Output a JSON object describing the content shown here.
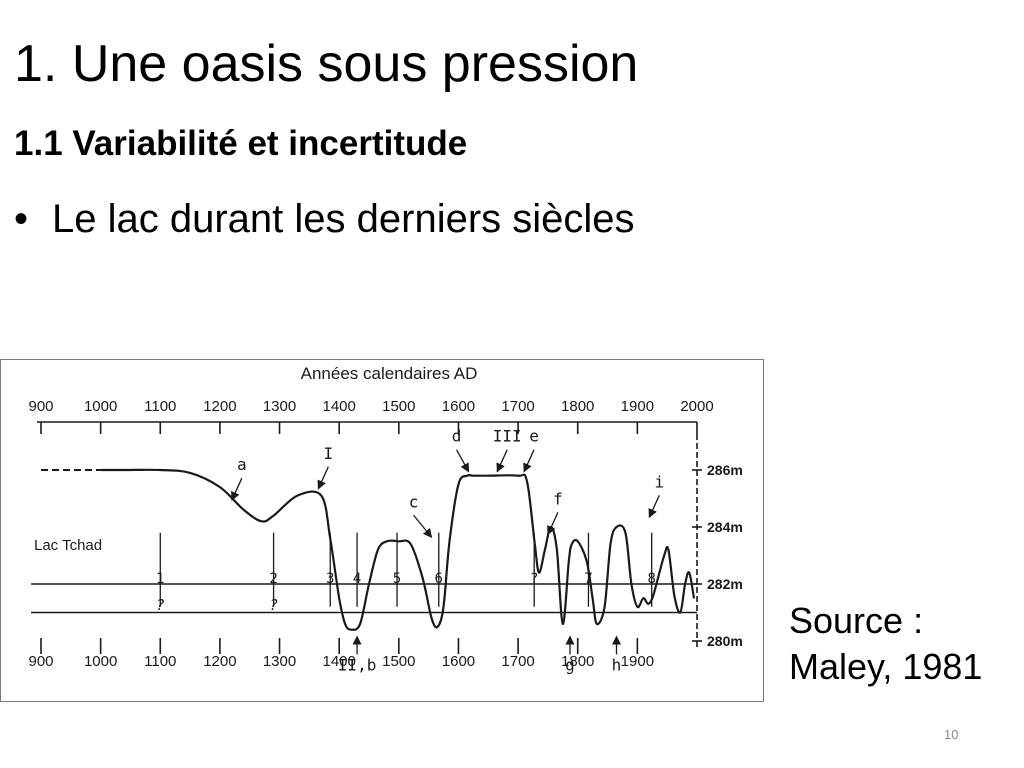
{
  "slide": {
    "title": "1. Une oasis sous pression",
    "subtitle": "1.1 Variabilité et incertitude",
    "bullet": "Le lac durant les derniers siècles",
    "source_line1": "Source :",
    "source_line2": "Maley, 1981",
    "page_number": "10"
  },
  "chart_data": {
    "type": "line",
    "title": "Années calendaires AD",
    "series_label": "Lac Tchad",
    "x_ticks": [
      "900",
      "1000",
      "1100",
      "1200",
      "1300",
      "1400",
      "1500",
      "1600",
      "1700",
      "1800",
      "1900",
      "2000"
    ],
    "x_ticks_bottom": [
      "900",
      "1000",
      "1100",
      "1200",
      "1300",
      "1400",
      "1500",
      "1600",
      "1700",
      "1800",
      "1900"
    ],
    "y_ticks": [
      "286m",
      "284m",
      "282m",
      "280m"
    ],
    "xlim": [
      900,
      2000
    ],
    "ylim": [
      280,
      286
    ],
    "series": [
      {
        "x": [
          1000,
          1040,
          1100,
          1150,
          1200,
          1240,
          1270,
          1290,
          1330,
          1370,
          1385,
          1400,
          1410,
          1420,
          1435,
          1450,
          1465,
          1480,
          1500,
          1520,
          1540,
          1555,
          1565,
          1575,
          1585,
          1600,
          1615,
          1625,
          1650,
          1700,
          1715,
          1728,
          1735,
          1745,
          1755,
          1765,
          1775,
          1785,
          1790,
          1800,
          1815,
          1825,
          1832,
          1845,
          1855,
          1865,
          1880,
          1890,
          1900,
          1910,
          1918,
          1925,
          1932,
          1945,
          1952,
          1962,
          1972,
          1980,
          1987,
          1995
        ],
        "y": [
          286,
          286,
          286,
          285.9,
          285.4,
          284.6,
          284.2,
          284.4,
          285.1,
          285.1,
          283.6,
          281.5,
          280.6,
          280.4,
          280.6,
          282,
          283.2,
          283.5,
          283.5,
          283.4,
          282.2,
          280.8,
          280.5,
          281.2,
          283.5,
          285.5,
          285.8,
          285.8,
          285.8,
          285.8,
          285.6,
          283.4,
          282.4,
          283.2,
          284,
          283.2,
          280.6,
          282.8,
          283.4,
          283.5,
          282.8,
          281.5,
          280.6,
          281.2,
          283.4,
          284,
          283.8,
          282,
          281.2,
          281.5,
          281.3,
          281.5,
          282,
          283,
          283.2,
          281.6,
          281,
          282,
          282.4,
          281.5
        ]
      }
    ],
    "dashed_extension": {
      "x_from": 900,
      "x_to": 1000,
      "y": 286
    },
    "reference_lines": [
      282,
      281
    ],
    "annotations": [
      {
        "label": "a",
        "x": 1220,
        "y": 284.8
      },
      {
        "label": "I",
        "x": 1365,
        "y": 285.2
      },
      {
        "label": "c",
        "x": 1555,
        "y": 283.5
      },
      {
        "label": "d",
        "x": 1617,
        "y": 285.8
      },
      {
        "label": "III",
        "x": 1665,
        "y": 285.8
      },
      {
        "label": "e",
        "x": 1710,
        "y": 285.8
      },
      {
        "label": "f",
        "x": 1750,
        "y": 283.6
      },
      {
        "label": "i",
        "x": 1920,
        "y": 284.2
      },
      {
        "label": "II,b",
        "x": 1430,
        "y": 280.3
      },
      {
        "label": "g",
        "x": 1787,
        "y": 280.3
      },
      {
        "label": "h",
        "x": 1865,
        "y": 280.3
      }
    ],
    "markers": [
      {
        "label": "1",
        "x": 1100,
        "question": true
      },
      {
        "label": "2",
        "x": 1290,
        "question": true
      },
      {
        "label": "3",
        "x": 1385,
        "question": false
      },
      {
        "label": "4",
        "x": 1430,
        "question": false
      },
      {
        "label": "5",
        "x": 1497,
        "question": false
      },
      {
        "label": "6",
        "x": 1567,
        "question": false
      },
      {
        "label": "?",
        "x": 1727,
        "question": false
      },
      {
        "label": "7",
        "x": 1818,
        "question": false
      },
      {
        "label": "8",
        "x": 1924,
        "question": false
      }
    ]
  }
}
